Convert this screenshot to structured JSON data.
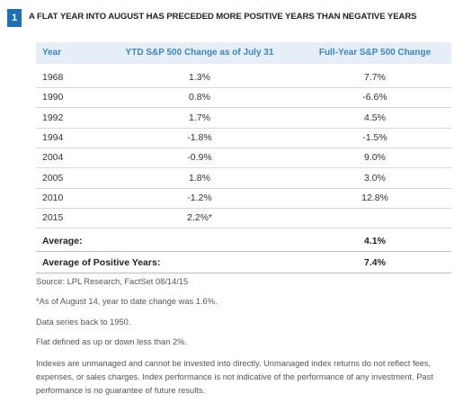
{
  "badge": "1",
  "title": "A FLAT YEAR INTO AUGUST HAS PRECEDED MORE POSITIVE YEARS THAN NEGATIVE YEARS",
  "table": {
    "header": [
      "Year",
      "YTD S&P 500 Change as of July 31",
      "Full-Year S&P 500 Change"
    ],
    "rows": [
      [
        "1968",
        "1.3%",
        "7.7%"
      ],
      [
        "1990",
        "0.8%",
        "-6.6%"
      ],
      [
        "1992",
        "1.7%",
        "4.5%"
      ],
      [
        "1994",
        "-1.8%",
        "-1.5%"
      ],
      [
        "2004",
        "-0.9%",
        "9.0%"
      ],
      [
        "2005",
        "1.8%",
        "3.0%"
      ],
      [
        "2010",
        "-1.2%",
        "12.8%"
      ],
      [
        "2015",
        "2.2%*"
      ]
    ],
    "summary": [
      [
        "Average:",
        "4.1%"
      ],
      [
        "Average of Positive Years:",
        "7.4%"
      ]
    ]
  },
  "notes": [
    "Source: LPL Research, FactSet 08/14/15",
    "*As of August 14, year to date change was 1.6%.",
    "Data series back to 1950.",
    "Flat defined as up or down less than 2%.",
    "Indexes are unmanaged and cannot be invested into directly. Unmanaged index returns do not reflect fees, expenses, or sales charges. Index performance is not indicative of the performance of any investment. Past performance is no guarantee of future results."
  ]
}
